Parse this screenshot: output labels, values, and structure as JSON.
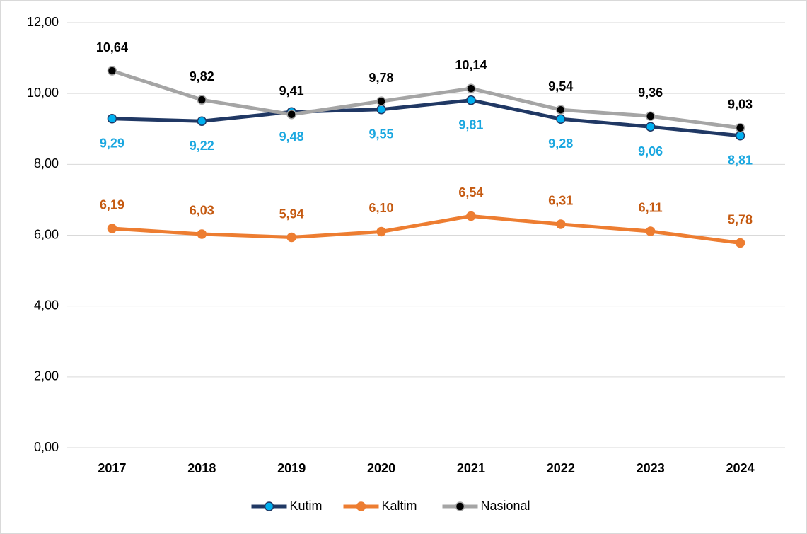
{
  "chart_data": {
    "type": "line",
    "categories": [
      "2017",
      "2018",
      "2019",
      "2020",
      "2021",
      "2022",
      "2023",
      "2024"
    ],
    "series": [
      {
        "name": "Kutim",
        "color": "#203864",
        "marker_color": "#00B0F0",
        "label_color": "#1AA7E0",
        "label_position": "below",
        "values": [
          9.29,
          9.22,
          9.48,
          9.55,
          9.81,
          9.28,
          9.06,
          8.81
        ],
        "value_labels": [
          "9,29",
          "9,22",
          "9,48",
          "9,55",
          "9,81",
          "9,28",
          "9,06",
          "8,81"
        ]
      },
      {
        "name": "Kaltim",
        "color": "#ED7D31",
        "marker_color": "#ED7D31",
        "label_color": "#C55A11",
        "label_position": "above",
        "values": [
          6.19,
          6.03,
          5.94,
          6.1,
          6.54,
          6.31,
          6.11,
          5.78
        ],
        "value_labels": [
          "6,19",
          "6,03",
          "5,94",
          "6,10",
          "6,54",
          "6,31",
          "6,11",
          "5,78"
        ]
      },
      {
        "name": "Nasional",
        "color": "#A5A5A5",
        "marker_color": "#000000",
        "label_color": "#000000",
        "label_position": "above",
        "values": [
          10.64,
          9.82,
          9.41,
          9.78,
          10.14,
          9.54,
          9.36,
          9.03
        ],
        "value_labels": [
          "10,64",
          "9,82",
          "9,41",
          "9,78",
          "10,14",
          "9,54",
          "9,36",
          "9,03"
        ]
      }
    ],
    "ylim": [
      0,
      12
    ],
    "yticks": [
      {
        "value": 0,
        "label": "0,00"
      },
      {
        "value": 2,
        "label": "2,00"
      },
      {
        "value": 4,
        "label": "4,00"
      },
      {
        "value": 6,
        "label": "6,00"
      },
      {
        "value": 8,
        "label": "8,00"
      },
      {
        "value": 10,
        "label": "10,00"
      },
      {
        "value": 12,
        "label": "12,00"
      }
    ],
    "grid": true,
    "legend": "bottom"
  }
}
